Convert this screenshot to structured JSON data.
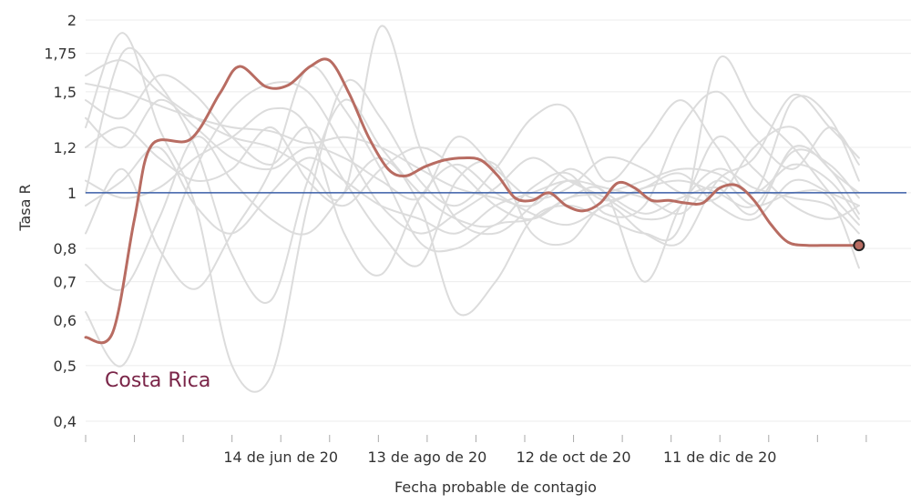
{
  "chart_data": {
    "type": "line",
    "xlabel": "Fecha probable de contagio",
    "ylabel": "Tasa R",
    "y_scale": "log",
    "ylim": [
      0.4,
      2
    ],
    "y_ticks": [
      0.4,
      0.5,
      0.6,
      0.7,
      0.8,
      1,
      1.2,
      1.5,
      1.75,
      2
    ],
    "y_tick_labels": [
      "0,4",
      "0,5",
      "0,6",
      "0,7",
      "0,8",
      "1",
      "1,2",
      "1,5",
      "1,75",
      "2"
    ],
    "xlim": [
      "2020-03-26",
      "2021-02-18"
    ],
    "x_tick_dates": [
      "2020-04-15",
      "2020-05-05",
      "2020-05-25",
      "2020-06-14",
      "2020-07-04",
      "2020-07-24",
      "2020-08-13",
      "2020-09-02",
      "2020-09-22",
      "2020-10-12",
      "2020-11-01",
      "2020-11-21",
      "2020-12-11",
      "2020-12-31",
      "2021-01-20",
      "2021-02-09"
    ],
    "x_tick_labels": [
      "14 de jun de 20",
      "13 de ago de 20",
      "12 de oct de 20",
      "11 de dic de 20"
    ],
    "x_tick_label_dates": [
      "2020-06-14",
      "2020-08-13",
      "2020-10-12",
      "2020-12-11"
    ],
    "reference_line": {
      "value": 1,
      "color": "#3a5ea8"
    },
    "annotation": {
      "text": "Costa Rica",
      "color": "#7a2548"
    },
    "highlight": {
      "name": "Costa Rica",
      "color": "#b86c62",
      "x": [
        "2020-03-26",
        "2020-04-06",
        "2020-04-15",
        "2020-04-22",
        "2020-05-08",
        "2020-05-20",
        "2020-05-28",
        "2020-06-08",
        "2020-06-17",
        "2020-06-26",
        "2020-07-04",
        "2020-07-12",
        "2020-07-20",
        "2020-07-28",
        "2020-08-04",
        "2020-08-12",
        "2020-08-20",
        "2020-08-28",
        "2020-09-04",
        "2020-09-11",
        "2020-09-18",
        "2020-09-25",
        "2020-10-02",
        "2020-10-09",
        "2020-10-16",
        "2020-10-23",
        "2020-10-30",
        "2020-11-06",
        "2020-11-13",
        "2020-11-20",
        "2020-11-27",
        "2020-12-04",
        "2020-12-11",
        "2020-12-18",
        "2020-12-25",
        "2021-01-01",
        "2021-01-08",
        "2021-01-16",
        "2021-01-24",
        "2021-02-01",
        "2021-02-06"
      ],
      "y": [
        0.56,
        0.57,
        0.9,
        1.21,
        1.24,
        1.49,
        1.66,
        1.53,
        1.54,
        1.66,
        1.7,
        1.49,
        1.25,
        1.1,
        1.07,
        1.11,
        1.14,
        1.15,
        1.14,
        1.07,
        0.98,
        0.97,
        1.0,
        0.95,
        0.93,
        0.96,
        1.04,
        1.02,
        0.97,
        0.97,
        0.96,
        0.96,
        1.02,
        1.03,
        0.97,
        0.88,
        0.82,
        0.81,
        0.81,
        0.81,
        0.81
      ]
    },
    "background_series_color": "#dcdcdc",
    "background_series": [
      {
        "x": [
          "2020-03-26",
          "2020-04-10",
          "2020-04-25",
          "2020-05-10",
          "2020-05-25",
          "2020-06-10",
          "2020-06-25",
          "2020-07-10",
          "2020-07-25",
          "2020-08-10",
          "2020-08-25",
          "2020-09-10",
          "2020-09-25",
          "2020-10-10",
          "2020-10-25",
          "2020-11-10",
          "2020-11-25",
          "2020-12-10",
          "2020-12-25",
          "2021-01-10",
          "2021-01-25",
          "2021-02-06"
        ],
        "y": [
          1.55,
          1.5,
          1.42,
          1.35,
          1.3,
          1.28,
          1.22,
          1.25,
          1.2,
          1.1,
          1.02,
          0.98,
          0.95,
          1.05,
          0.97,
          1.02,
          1.05,
          1.0,
          0.95,
          1.18,
          1.12,
          0.98
        ]
      },
      {
        "x": [
          "2020-03-26",
          "2020-04-10",
          "2020-04-25",
          "2020-05-10",
          "2020-05-25",
          "2020-06-10",
          "2020-06-25",
          "2020-07-10",
          "2020-07-25",
          "2020-08-10",
          "2020-08-25",
          "2020-09-10",
          "2020-09-25",
          "2020-10-10",
          "2020-10-25",
          "2020-11-10",
          "2020-11-25",
          "2020-12-10",
          "2020-12-25",
          "2021-01-10",
          "2021-01-25",
          "2021-02-06"
        ],
        "y": [
          1.0,
          1.75,
          1.55,
          1.2,
          0.78,
          0.65,
          1.05,
          1.45,
          1.2,
          1.0,
          0.9,
          0.88,
          1.02,
          1.08,
          0.92,
          0.95,
          1.3,
          1.5,
          1.25,
          1.1,
          1.3,
          1.12
        ]
      },
      {
        "x": [
          "2020-03-26",
          "2020-04-10",
          "2020-04-25",
          "2020-05-10",
          "2020-05-25",
          "2020-06-10",
          "2020-06-25",
          "2020-07-10",
          "2020-07-25",
          "2020-08-10",
          "2020-08-25",
          "2020-09-10",
          "2020-09-25",
          "2020-10-10",
          "2020-10-25",
          "2020-11-10",
          "2020-11-25",
          "2020-12-10",
          "2020-12-25",
          "2021-01-10",
          "2021-01-25",
          "2021-02-06"
        ],
        "y": [
          1.3,
          1.9,
          1.3,
          0.95,
          0.5,
          0.48,
          0.95,
          1.55,
          1.35,
          1.05,
          0.95,
          1.1,
          1.35,
          1.4,
          1.05,
          1.22,
          1.45,
          1.2,
          1.0,
          1.45,
          1.35,
          1.05
        ]
      },
      {
        "x": [
          "2020-03-26",
          "2020-04-10",
          "2020-04-25",
          "2020-05-10",
          "2020-05-25",
          "2020-06-10",
          "2020-06-25",
          "2020-07-10",
          "2020-07-25",
          "2020-08-10",
          "2020-08-25",
          "2020-09-10",
          "2020-09-25",
          "2020-10-10",
          "2020-10-25",
          "2020-11-10",
          "2020-11-25",
          "2020-12-10",
          "2020-12-25",
          "2021-01-10",
          "2021-01-25",
          "2021-02-06"
        ],
        "y": [
          0.62,
          0.5,
          0.75,
          1.1,
          1.4,
          1.55,
          1.5,
          1.2,
          0.95,
          0.85,
          0.92,
          1.02,
          1.15,
          1.05,
          0.98,
          0.9,
          0.95,
          1.25,
          1.1,
          0.95,
          0.9,
          0.95
        ]
      },
      {
        "x": [
          "2020-03-26",
          "2020-04-10",
          "2020-04-25",
          "2020-05-10",
          "2020-05-25",
          "2020-06-10",
          "2020-06-25",
          "2020-07-10",
          "2020-07-25",
          "2020-08-10",
          "2020-08-25",
          "2020-09-10",
          "2020-09-25",
          "2020-10-10",
          "2020-10-25",
          "2020-11-10",
          "2020-11-25",
          "2020-12-10",
          "2020-12-25",
          "2021-01-10",
          "2021-01-25",
          "2021-02-06"
        ],
        "y": [
          1.45,
          1.35,
          1.6,
          1.48,
          1.25,
          1.12,
          1.3,
          1.05,
          0.85,
          0.75,
          1.05,
          1.12,
          0.85,
          0.82,
          0.95,
          0.85,
          0.82,
          1.05,
          1.15,
          1.48,
          1.3,
          1.15
        ]
      },
      {
        "x": [
          "2020-03-26",
          "2020-04-10",
          "2020-04-25",
          "2020-05-10",
          "2020-05-25",
          "2020-06-10",
          "2020-06-25",
          "2020-07-10",
          "2020-07-25",
          "2020-08-10",
          "2020-08-25",
          "2020-09-10",
          "2020-09-25",
          "2020-10-10",
          "2020-10-25",
          "2020-11-10",
          "2020-11-25",
          "2020-12-10",
          "2020-12-25",
          "2021-01-10",
          "2021-01-25",
          "2021-02-06"
        ],
        "y": [
          0.85,
          1.1,
          0.8,
          0.68,
          0.85,
          1.1,
          1.65,
          1.4,
          1.1,
          0.82,
          0.8,
          0.88,
          0.9,
          0.98,
          1.0,
          1.05,
          1.1,
          1.08,
          1.0,
          1.12,
          1.05,
          0.9
        ]
      },
      {
        "x": [
          "2020-03-26",
          "2020-04-10",
          "2020-04-25",
          "2020-05-10",
          "2020-05-25",
          "2020-06-10",
          "2020-06-25",
          "2020-07-10",
          "2020-07-25",
          "2020-08-10",
          "2020-08-25",
          "2020-09-10",
          "2020-09-25",
          "2020-10-10",
          "2020-10-25",
          "2020-11-10",
          "2020-11-25",
          "2020-12-10",
          "2020-12-25",
          "2021-01-10",
          "2021-01-25",
          "2021-02-06"
        ],
        "y": [
          1.6,
          1.7,
          1.5,
          1.35,
          1.25,
          1.2,
          1.1,
          1.0,
          1.95,
          1.2,
          0.9,
          0.85,
          0.95,
          1.1,
          1.0,
          0.92,
          0.98,
          1.02,
          0.92,
          1.2,
          1.1,
          0.92
        ]
      },
      {
        "x": [
          "2020-03-26",
          "2020-04-10",
          "2020-04-25",
          "2020-05-10",
          "2020-05-25",
          "2020-06-10",
          "2020-06-25",
          "2020-07-10",
          "2020-07-25",
          "2020-08-10",
          "2020-08-25",
          "2020-09-10",
          "2020-09-25",
          "2020-10-10",
          "2020-10-25",
          "2020-11-10",
          "2020-11-25",
          "2020-12-10",
          "2020-12-25",
          "2021-01-10",
          "2021-01-25",
          "2021-02-06"
        ],
        "y": [
          0.75,
          0.68,
          0.9,
          1.25,
          1.05,
          0.9,
          0.85,
          1.0,
          1.15,
          0.95,
          0.62,
          0.7,
          0.9,
          0.95,
          0.9,
          0.85,
          0.88,
          1.7,
          1.4,
          1.2,
          1.0,
          0.88
        ]
      },
      {
        "x": [
          "2020-03-26",
          "2020-04-10",
          "2020-04-25",
          "2020-05-10",
          "2020-05-25",
          "2020-06-10",
          "2020-06-25",
          "2020-07-10",
          "2020-07-25",
          "2020-08-10",
          "2020-08-25",
          "2020-09-10",
          "2020-09-25",
          "2020-10-10",
          "2020-10-25",
          "2020-11-10",
          "2020-11-25",
          "2020-12-10",
          "2020-12-25",
          "2021-01-10",
          "2021-01-25",
          "2021-02-06"
        ],
        "y": [
          1.2,
          1.3,
          1.15,
          1.05,
          1.1,
          1.3,
          1.05,
          0.95,
          1.1,
          1.2,
          1.1,
          0.95,
          0.9,
          0.98,
          1.0,
          0.7,
          0.95,
          1.1,
          1.02,
          0.98,
          0.95,
          0.85
        ]
      },
      {
        "x": [
          "2020-03-26",
          "2020-04-10",
          "2020-04-25",
          "2020-05-10",
          "2020-05-25",
          "2020-06-10",
          "2020-06-25",
          "2020-07-10",
          "2020-07-25",
          "2020-08-10",
          "2020-08-25",
          "2020-09-10",
          "2020-09-25",
          "2020-10-10",
          "2020-10-25",
          "2020-11-10",
          "2020-11-25",
          "2020-12-10",
          "2020-12-25",
          "2021-01-10",
          "2021-01-25",
          "2021-02-06"
        ],
        "y": [
          1.05,
          0.98,
          1.02,
          1.15,
          1.25,
          1.4,
          1.3,
          0.85,
          0.72,
          0.98,
          1.12,
          1.0,
          0.92,
          0.88,
          0.95,
          1.02,
          1.08,
          0.95,
          0.9,
          1.05,
          1.0,
          0.95
        ]
      },
      {
        "x": [
          "2020-03-26",
          "2020-04-10",
          "2020-04-25",
          "2020-05-10",
          "2020-05-25",
          "2020-06-10",
          "2020-06-25",
          "2020-07-10",
          "2020-07-25",
          "2020-08-10",
          "2020-08-25",
          "2020-09-10",
          "2020-09-25",
          "2020-10-10",
          "2020-10-25",
          "2020-11-10",
          "2020-11-25",
          "2020-12-10",
          "2020-12-25",
          "2021-01-10",
          "2021-01-25",
          "2021-02-06"
        ],
        "y": [
          1.35,
          1.2,
          1.45,
          1.3,
          1.15,
          1.1,
          1.2,
          1.15,
          1.05,
          0.98,
          1.25,
          1.1,
          0.98,
          1.02,
          1.15,
          1.1,
          1.0,
          0.98,
          1.2,
          1.3,
          1.1,
          1.0
        ]
      },
      {
        "x": [
          "2020-03-26",
          "2020-04-10",
          "2020-04-25",
          "2020-05-10",
          "2020-05-25",
          "2020-06-10",
          "2020-06-25",
          "2020-07-10",
          "2020-07-25",
          "2020-08-10",
          "2020-08-25",
          "2020-09-10",
          "2020-09-25",
          "2020-10-10",
          "2020-10-25",
          "2020-11-10",
          "2020-11-25",
          "2020-12-10",
          "2020-12-25",
          "2021-01-10",
          "2021-01-25",
          "2021-02-06"
        ],
        "y": [
          0.95,
          1.05,
          1.2,
          0.95,
          0.85,
          1.0,
          1.15,
          1.05,
          0.95,
          0.9,
          0.85,
          0.95,
          1.0,
          1.05,
          1.02,
          0.98,
          0.92,
          1.05,
          0.95,
          1.0,
          0.98,
          0.74
        ]
      }
    ]
  }
}
